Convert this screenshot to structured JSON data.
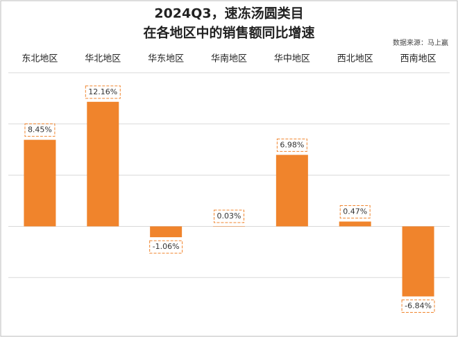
{
  "chart_data": {
    "type": "bar",
    "title": "2024Q3，速冻汤圆类目",
    "subtitle": "在各地区中的销售额同比增速",
    "source": "数据来源：马上赢",
    "categories": [
      "东北地区",
      "华北地区",
      "华东地区",
      "华南地区",
      "华中地区",
      "西北地区",
      "西南地区"
    ],
    "values": [
      8.45,
      12.16,
      -1.06,
      0.03,
      6.98,
      0.47,
      -6.84
    ],
    "value_labels": [
      "8.45%",
      "12.16%",
      "-1.06%",
      "0.03%",
      "6.98%",
      "0.47%",
      "-6.84%"
    ],
    "color": "#f0842c",
    "ylim": [
      -8.5,
      15.6
    ],
    "yticks": [
      -5,
      0,
      5,
      10,
      15
    ],
    "grid": true
  }
}
